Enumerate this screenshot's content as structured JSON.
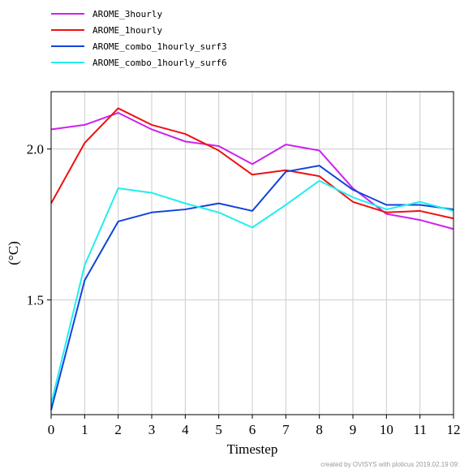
{
  "chart_data": {
    "type": "line",
    "x": [
      0,
      1,
      2,
      3,
      4,
      5,
      6,
      7,
      8,
      9,
      10,
      11,
      12
    ],
    "xlabel": "Timestep",
    "ylabel": "(°C)",
    "xlim": [
      0,
      12
    ],
    "ylim": [
      1.12,
      2.19
    ],
    "yticks": [
      1.5,
      2.0
    ],
    "ytick_labels": [
      "1.5",
      "2.0"
    ],
    "xtick_labels": [
      "0",
      "1",
      "2",
      "3",
      "4",
      "5",
      "6",
      "7",
      "8",
      "9",
      "10",
      "11",
      "12"
    ],
    "grid": true,
    "legend_position": "top-left",
    "series": [
      {
        "name": "AROME_3hourly",
        "color": "#cc22ee",
        "values": [
          2.065,
          2.08,
          2.12,
          2.065,
          2.025,
          2.01,
          1.95,
          2.015,
          1.995,
          1.87,
          1.785,
          1.765,
          1.735
        ]
      },
      {
        "name": "AROME_1hourly",
        "color": "#ee1111",
        "values": [
          1.82,
          2.02,
          2.135,
          2.08,
          2.05,
          1.995,
          1.915,
          1.93,
          1.91,
          1.825,
          1.79,
          1.795,
          1.77
        ]
      },
      {
        "name": "AROME_combo_1hourly_surf3",
        "color": "#1144dd",
        "values": [
          1.135,
          1.565,
          1.76,
          1.79,
          1.8,
          1.82,
          1.795,
          1.925,
          1.945,
          1.865,
          1.815,
          1.815,
          1.8
        ]
      },
      {
        "name": "AROME_combo_1hourly_surf6",
        "color": "#22eeee",
        "values": [
          1.155,
          1.615,
          1.87,
          1.855,
          1.82,
          1.79,
          1.74,
          1.815,
          1.895,
          1.84,
          1.8,
          1.825,
          1.795
        ]
      }
    ]
  },
  "credit": "created by OVISYS with ploticus 2019.02.19 09:"
}
